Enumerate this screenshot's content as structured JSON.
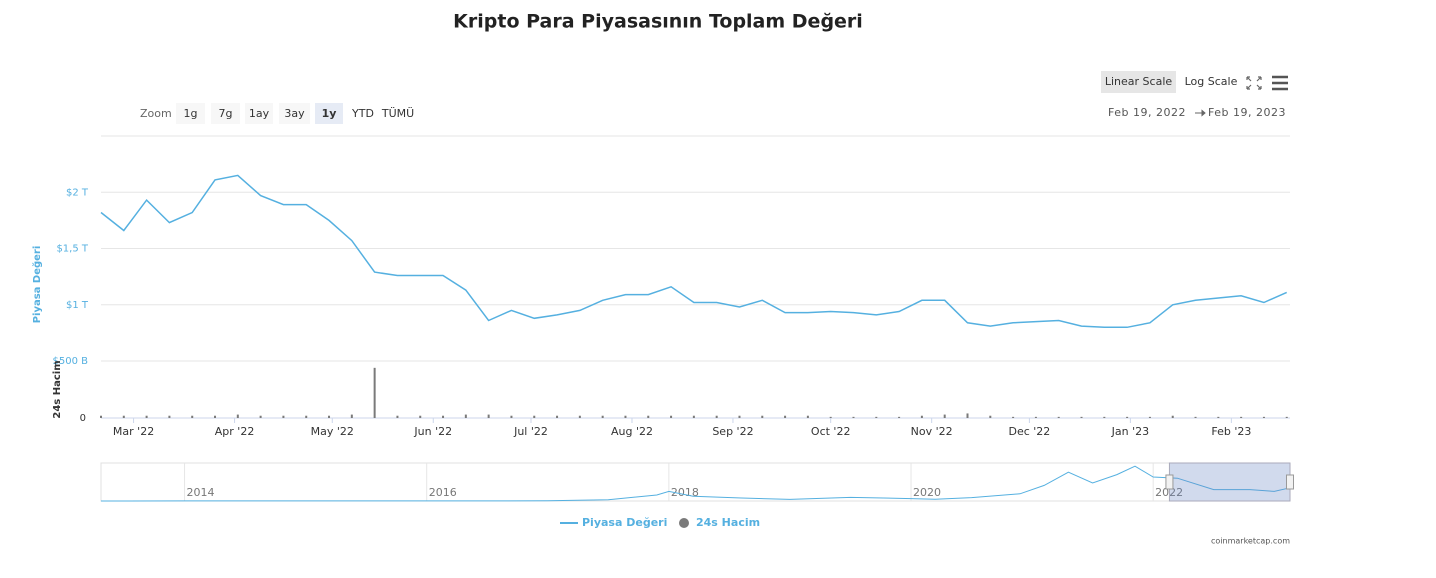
{
  "chart_data": {
    "type": "line",
    "title": "Kripto Para Piyasasının Toplam Değeri",
    "range_selector": {
      "label": "Zoom",
      "buttons": [
        "1g",
        "7g",
        "1ay",
        "3ay",
        "1y",
        "YTD",
        "TÜMÜ"
      ],
      "selected": 4
    },
    "scale_buttons": [
      "Linear Scale",
      "Log Scale"
    ],
    "scale_selected": 0,
    "date_range": [
      "Feb 19, 2022",
      "Feb 19, 2023"
    ],
    "credit": "coinmarketcap.com",
    "x": [
      "2022-02-19",
      "2022-02-26",
      "2022-03-05",
      "2022-03-12",
      "2022-03-19",
      "2022-03-26",
      "2022-04-02",
      "2022-04-09",
      "2022-04-16",
      "2022-04-23",
      "2022-04-30",
      "2022-05-07",
      "2022-05-14",
      "2022-05-21",
      "2022-05-28",
      "2022-06-04",
      "2022-06-11",
      "2022-06-18",
      "2022-06-25",
      "2022-07-02",
      "2022-07-09",
      "2022-07-16",
      "2022-07-23",
      "2022-07-30",
      "2022-08-06",
      "2022-08-13",
      "2022-08-20",
      "2022-08-27",
      "2022-09-03",
      "2022-09-10",
      "2022-09-17",
      "2022-09-24",
      "2022-10-01",
      "2022-10-08",
      "2022-10-15",
      "2022-10-22",
      "2022-10-29",
      "2022-11-05",
      "2022-11-12",
      "2022-11-19",
      "2022-11-26",
      "2022-12-03",
      "2022-12-10",
      "2022-12-17",
      "2022-12-24",
      "2022-12-31",
      "2023-01-07",
      "2023-01-14",
      "2023-01-21",
      "2023-01-28",
      "2023-02-04",
      "2023-02-11",
      "2023-02-18"
    ],
    "series": [
      {
        "name": "Piyasa Değeri",
        "color": "#55b0e0",
        "values": [
          1.82,
          1.66,
          1.93,
          1.73,
          1.82,
          2.11,
          2.15,
          1.97,
          1.89,
          1.89,
          1.75,
          1.57,
          1.29,
          1.26,
          1.26,
          1.26,
          1.13,
          0.86,
          0.95,
          0.88,
          0.91,
          0.95,
          1.04,
          1.09,
          1.09,
          1.16,
          1.02,
          1.02,
          0.98,
          1.04,
          0.93,
          0.93,
          0.94,
          0.93,
          0.91,
          0.94,
          1.04,
          1.04,
          0.84,
          0.81,
          0.84,
          0.85,
          0.86,
          0.81,
          0.8,
          0.8,
          0.84,
          1.0,
          1.04,
          1.06,
          1.08,
          1.02,
          1.11
        ]
      },
      {
        "name": "24s Hacim",
        "color": "#7a7a7a",
        "axis": "y2",
        "values": [
          0.02,
          0.02,
          0.02,
          0.02,
          0.02,
          0.02,
          0.03,
          0.02,
          0.02,
          0.02,
          0.02,
          0.03,
          0.44,
          0.02,
          0.02,
          0.02,
          0.03,
          0.03,
          0.02,
          0.02,
          0.02,
          0.02,
          0.02,
          0.02,
          0.02,
          0.02,
          0.02,
          0.02,
          0.02,
          0.02,
          0.02,
          0.02,
          0.01,
          0.01,
          0.01,
          0.01,
          0.02,
          0.03,
          0.04,
          0.02,
          0.01,
          0.01,
          0.01,
          0.01,
          0.01,
          0.01,
          0.01,
          0.02,
          0.01,
          0.01,
          0.01,
          0.01,
          0.01
        ]
      }
    ],
    "xlim": [
      "2022-02-19",
      "2023-02-19"
    ],
    "xticks": [
      {
        "value": "2022-03-01",
        "label": "Mar '22"
      },
      {
        "value": "2022-04-01",
        "label": "Apr '22"
      },
      {
        "value": "2022-05-01",
        "label": "May '22"
      },
      {
        "value": "2022-06-01",
        "label": "Jun '22"
      },
      {
        "value": "2022-07-01",
        "label": "Jul '22"
      },
      {
        "value": "2022-08-01",
        "label": "Aug '22"
      },
      {
        "value": "2022-09-01",
        "label": "Sep '22"
      },
      {
        "value": "2022-10-01",
        "label": "Oct '22"
      },
      {
        "value": "2022-11-01",
        "label": "Nov '22"
      },
      {
        "value": "2022-12-01",
        "label": "Dec '22"
      },
      {
        "value": "2023-01-01",
        "label": "Jan '23"
      },
      {
        "value": "2023-02-01",
        "label": "Feb '23"
      }
    ],
    "ylim": [
      0.5,
      2.5
    ],
    "yticks": [
      {
        "value": 0.5,
        "label": "$500 B"
      },
      {
        "value": 1,
        "label": "$1 T"
      },
      {
        "value": 1.5,
        "label": "$1,5 T"
      },
      {
        "value": 2,
        "label": "$2 T"
      }
    ],
    "y2lim": [
      0,
      0.5
    ],
    "y2ticks": [
      0
    ],
    "grid": true,
    "navigator": {
      "x": [
        2013.31,
        2014,
        2015,
        2016,
        2017,
        2017.5,
        2017.9,
        2018,
        2018.2,
        2018.6,
        2019,
        2019.5,
        2020,
        2020.2,
        2020.5,
        2020.9,
        2021.1,
        2021.3,
        2021.5,
        2021.7,
        2021.85,
        2022,
        2022.2,
        2022.5,
        2022.8,
        2023,
        2023.13
      ],
      "values": [
        0.001,
        0.01,
        0.005,
        0.007,
        0.02,
        0.1,
        0.5,
        0.8,
        0.4,
        0.25,
        0.13,
        0.3,
        0.2,
        0.15,
        0.28,
        0.6,
        1.3,
        2.4,
        1.5,
        2.2,
        2.9,
        2.0,
        1.9,
        0.95,
        0.95,
        0.8,
        1.1
      ],
      "xlim": [
        2013.31,
        2023.13
      ],
      "ylim": [
        0,
        3
      ],
      "xticks": [
        2014,
        2016,
        2018,
        2020,
        2022
      ]
    }
  }
}
